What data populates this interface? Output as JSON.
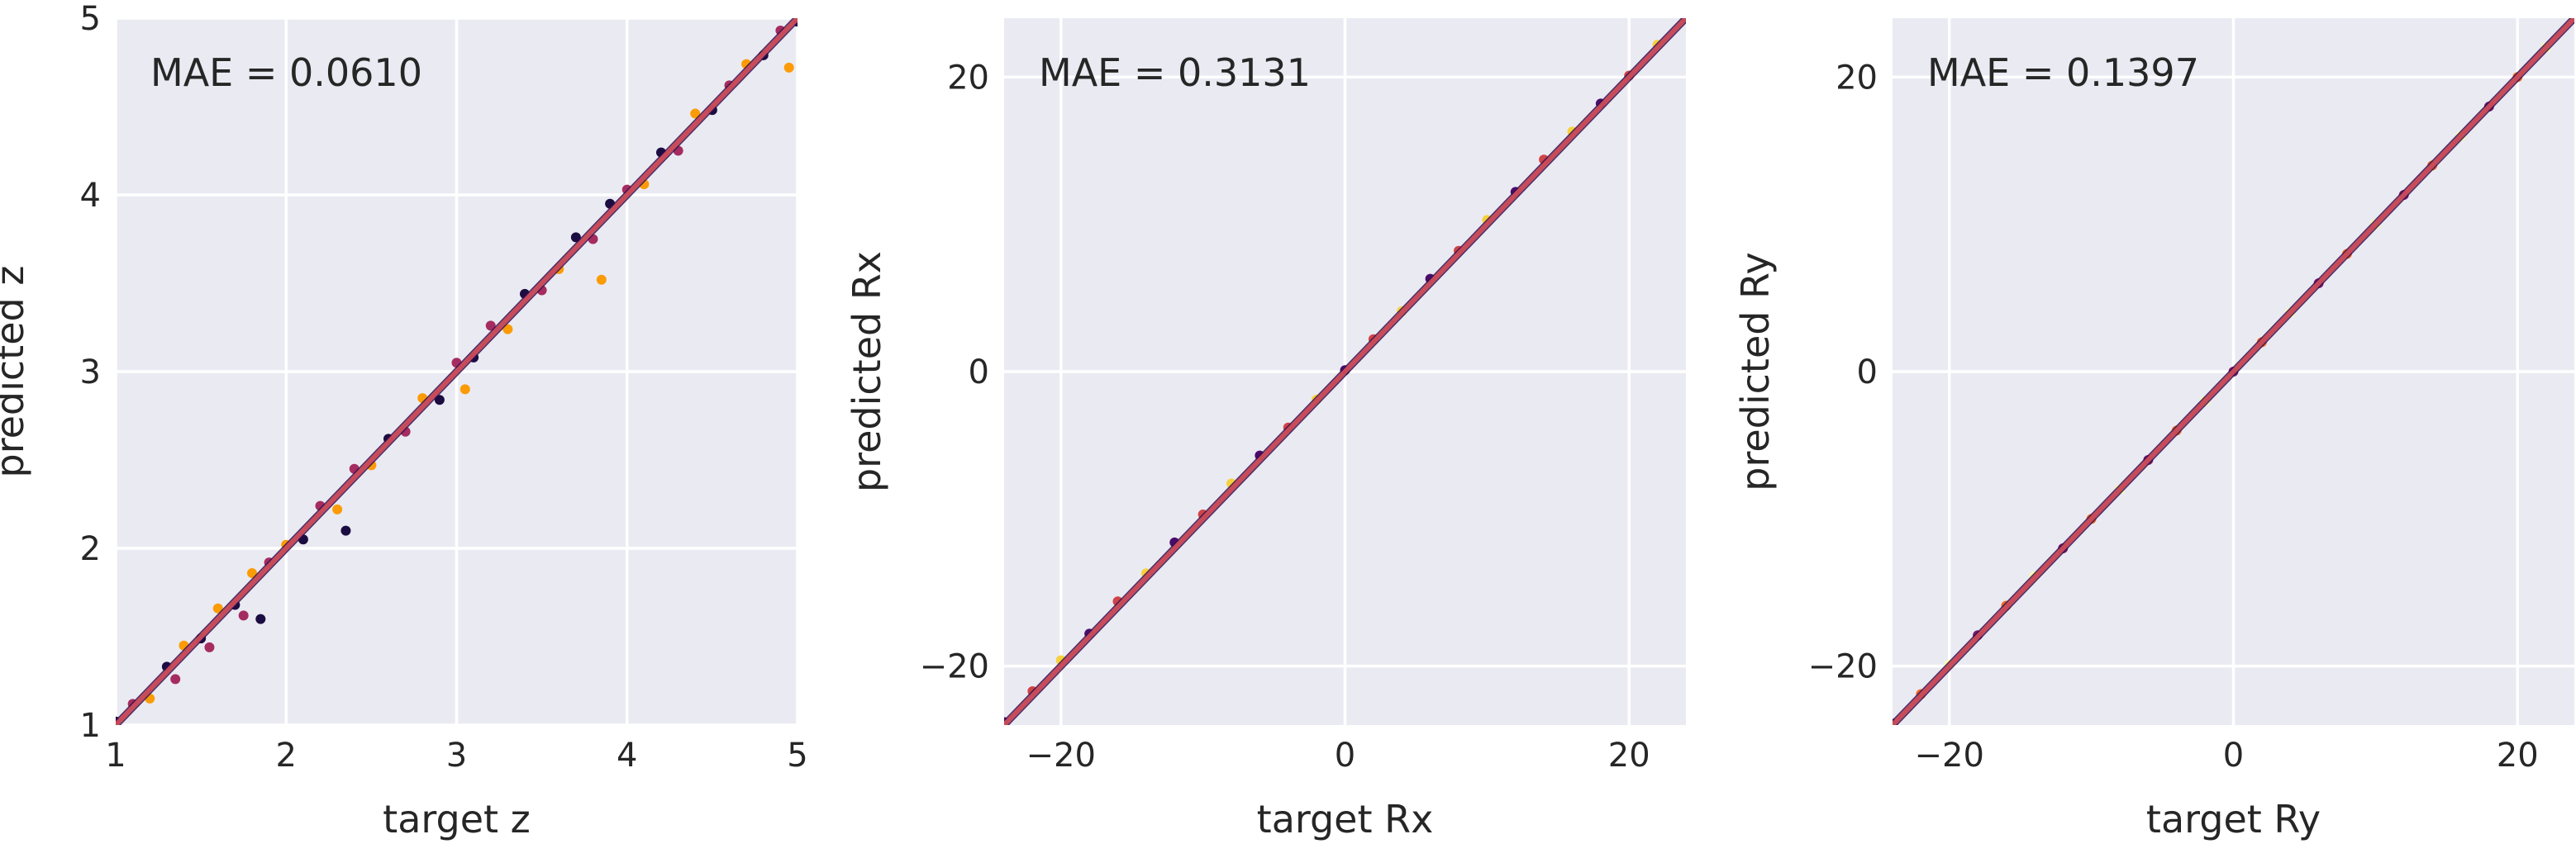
{
  "chart_data": [
    {
      "type": "scatter",
      "xlabel": "target z",
      "ylabel": "predicted z",
      "annotation": "MAE = 0.0610",
      "xlim": [
        1,
        5
      ],
      "ylim": [
        1,
        5
      ],
      "xticks": [
        1,
        2,
        3,
        4,
        5
      ],
      "yticks": [
        1,
        2,
        3,
        4,
        5
      ],
      "tick_labels_x": [
        "1",
        "2",
        "3",
        "4",
        "5"
      ],
      "tick_labels_y": [
        "1",
        "2",
        "3",
        "4",
        "5"
      ],
      "grid": true,
      "points": [
        [
          1.0,
          1.02
        ],
        [
          1.1,
          1.12
        ],
        [
          1.2,
          1.15
        ],
        [
          1.3,
          1.33
        ],
        [
          1.35,
          1.26
        ],
        [
          1.4,
          1.45
        ],
        [
          1.5,
          1.49
        ],
        [
          1.55,
          1.44
        ],
        [
          1.6,
          1.66
        ],
        [
          1.7,
          1.68
        ],
        [
          1.75,
          1.62
        ],
        [
          1.8,
          1.86
        ],
        [
          1.85,
          1.6
        ],
        [
          1.9,
          1.92
        ],
        [
          2.0,
          2.02
        ],
        [
          2.1,
          2.05
        ],
        [
          2.2,
          2.24
        ],
        [
          2.3,
          2.22
        ],
        [
          2.35,
          2.1
        ],
        [
          2.4,
          2.45
        ],
        [
          2.5,
          2.47
        ],
        [
          2.6,
          2.62
        ],
        [
          2.7,
          2.66
        ],
        [
          2.8,
          2.85
        ],
        [
          2.9,
          2.84
        ],
        [
          3.0,
          3.05
        ],
        [
          3.05,
          2.9
        ],
        [
          3.1,
          3.08
        ],
        [
          3.2,
          3.26
        ],
        [
          3.3,
          3.24
        ],
        [
          3.4,
          3.44
        ],
        [
          3.5,
          3.46
        ],
        [
          3.6,
          3.58
        ],
        [
          3.7,
          3.76
        ],
        [
          3.8,
          3.75
        ],
        [
          3.85,
          3.52
        ],
        [
          3.9,
          3.95
        ],
        [
          4.0,
          4.03
        ],
        [
          4.1,
          4.06
        ],
        [
          4.2,
          4.24
        ],
        [
          4.3,
          4.25
        ],
        [
          4.4,
          4.46
        ],
        [
          4.5,
          4.48
        ],
        [
          4.6,
          4.62
        ],
        [
          4.7,
          4.74
        ],
        [
          4.8,
          4.79
        ],
        [
          4.9,
          4.93
        ],
        [
          4.95,
          4.72
        ],
        [
          5.0,
          4.98
        ]
      ],
      "colors": [
        "#1b0c41",
        "#4a0c6b",
        "#781c6d",
        "#a52c60",
        "#cf4446",
        "#ed6925",
        "#fb9b06",
        "#f7d13d",
        "#fcffa4"
      ]
    },
    {
      "type": "scatter",
      "xlabel": "target Rx",
      "ylabel": "predicted Rx",
      "annotation": "MAE = 0.3131",
      "xlim": [
        -24,
        24
      ],
      "ylim": [
        -24,
        24
      ],
      "xticks": [
        -20,
        0,
        20
      ],
      "yticks": [
        -20,
        0,
        20
      ],
      "tick_labels_x": [
        "−20",
        "0",
        "20"
      ],
      "tick_labels_y": [
        "−20",
        "0",
        "20"
      ],
      "grid": true,
      "points": [
        [
          -24,
          -23.8
        ],
        [
          -22,
          -21.7
        ],
        [
          -20,
          -19.6
        ],
        [
          -18,
          -17.8
        ],
        [
          -16,
          -15.6
        ],
        [
          -14,
          -13.7
        ],
        [
          -12,
          -11.6
        ],
        [
          -10,
          -9.7
        ],
        [
          -8,
          -7.6
        ],
        [
          -6,
          -5.7
        ],
        [
          -4,
          -3.8
        ],
        [
          -2,
          -1.9
        ],
        [
          0,
          0.1
        ],
        [
          2,
          2.2
        ],
        [
          4,
          4.1
        ],
        [
          6,
          6.3
        ],
        [
          8,
          8.2
        ],
        [
          10,
          10.3
        ],
        [
          12,
          12.2
        ],
        [
          14,
          14.4
        ],
        [
          16,
          16.3
        ],
        [
          18,
          18.2
        ],
        [
          20,
          20.1
        ],
        [
          22,
          22.2
        ],
        [
          24,
          24.0
        ]
      ],
      "colors": [
        "#1b0c41",
        "#4a0c6b",
        "#781c6d",
        "#a52c60",
        "#cf4446",
        "#ed6925",
        "#fb9b06",
        "#f7d13d",
        "#fcffa4"
      ]
    },
    {
      "type": "scatter",
      "xlabel": "target Ry",
      "ylabel": "predicted Ry",
      "annotation": "MAE = 0.1397",
      "xlim": [
        -24,
        24
      ],
      "ylim": [
        -24,
        24
      ],
      "xticks": [
        -20,
        0,
        20
      ],
      "yticks": [
        -20,
        0,
        20
      ],
      "tick_labels_x": [
        "−20",
        "0",
        "20"
      ],
      "tick_labels_y": [
        "−20",
        "0",
        "20"
      ],
      "grid": true,
      "points": [
        [
          -24,
          -23.9
        ],
        [
          -22,
          -21.9
        ],
        [
          -20,
          -19.9
        ],
        [
          -18,
          -17.9
        ],
        [
          -16,
          -15.9
        ],
        [
          -14,
          -13.9
        ],
        [
          -12,
          -12.0
        ],
        [
          -10,
          -10.0
        ],
        [
          -8,
          -8.0
        ],
        [
          -6,
          -6.0
        ],
        [
          -4,
          -4.0
        ],
        [
          -2,
          -2.0
        ],
        [
          0,
          0.0
        ],
        [
          2,
          2.0
        ],
        [
          4,
          4.0
        ],
        [
          6,
          6.0
        ],
        [
          8,
          8.0
        ],
        [
          10,
          10.0
        ],
        [
          12,
          12.0
        ],
        [
          14,
          14.0
        ],
        [
          16,
          16.0
        ],
        [
          18,
          18.0
        ],
        [
          20,
          20.0
        ],
        [
          22,
          22.0
        ],
        [
          24,
          24.0
        ]
      ],
      "colors": [
        "#1b0c41",
        "#4a0c6b",
        "#781c6d",
        "#a52c60",
        "#cf4446",
        "#ed6925",
        "#fb9b06",
        "#f7d13d",
        "#fcffa4"
      ]
    }
  ]
}
